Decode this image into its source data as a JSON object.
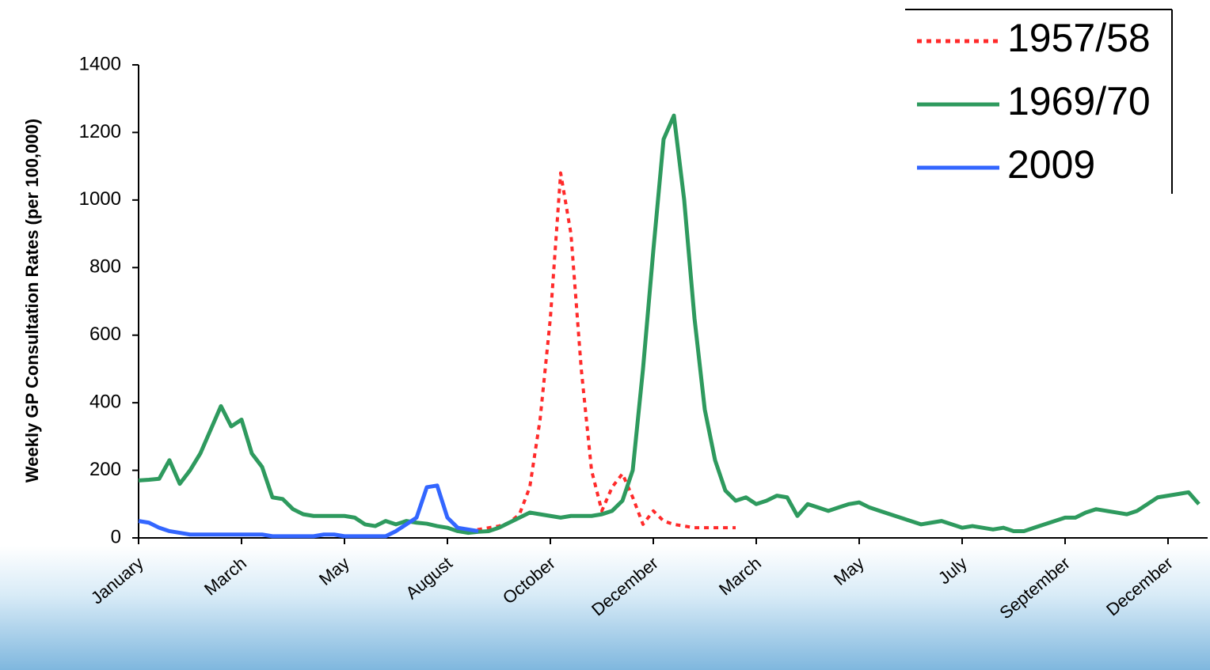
{
  "chart_data": {
    "type": "line",
    "y_label": "Weekly GP Consultation Rates (per 100,000)",
    "categories": [
      "January",
      null,
      null,
      null,
      null,
      null,
      null,
      null,
      null,
      null,
      "March",
      null,
      null,
      null,
      null,
      null,
      null,
      null,
      null,
      null,
      "May",
      null,
      null,
      null,
      null,
      null,
      null,
      null,
      null,
      null,
      "August",
      null,
      null,
      null,
      null,
      null,
      null,
      null,
      null,
      null,
      "October",
      null,
      null,
      null,
      null,
      null,
      null,
      null,
      null,
      null,
      "December",
      null,
      null,
      null,
      null,
      null,
      null,
      null,
      null,
      null,
      "March",
      null,
      null,
      null,
      null,
      null,
      null,
      null,
      null,
      null,
      "May",
      null,
      null,
      null,
      null,
      null,
      null,
      null,
      null,
      null,
      "July",
      null,
      null,
      null,
      null,
      null,
      null,
      null,
      null,
      null,
      "September",
      null,
      null,
      null,
      null,
      null,
      null,
      null,
      null,
      null,
      "December",
      null,
      null,
      null
    ],
    "series": [
      {
        "name": "1957/58",
        "color": "#ff2a2a",
        "style": "dotted",
        "values": [
          null,
          null,
          null,
          null,
          null,
          null,
          null,
          null,
          null,
          null,
          null,
          null,
          null,
          null,
          null,
          null,
          null,
          null,
          null,
          null,
          null,
          null,
          null,
          null,
          null,
          null,
          null,
          null,
          null,
          null,
          null,
          null,
          20,
          25,
          30,
          35,
          45,
          70,
          150,
          350,
          650,
          1080,
          900,
          500,
          200,
          80,
          150,
          190,
          120,
          40,
          80,
          50,
          40,
          35,
          30,
          30,
          30,
          30,
          30,
          null,
          null,
          null,
          null,
          null,
          null,
          null,
          null,
          null,
          null,
          null,
          null,
          null,
          null,
          null,
          null,
          null,
          null,
          null,
          null,
          null,
          null,
          null,
          null,
          null,
          null,
          null,
          null,
          null,
          null,
          null,
          null,
          null,
          null,
          null,
          null,
          null,
          null,
          null,
          null,
          null,
          null,
          null,
          null,
          null
        ]
      },
      {
        "name": "1969/70",
        "color": "#2e9a5e",
        "style": "solid",
        "values": [
          170,
          172,
          175,
          230,
          160,
          200,
          250,
          320,
          390,
          330,
          350,
          250,
          210,
          120,
          115,
          85,
          70,
          65,
          65,
          65,
          65,
          60,
          40,
          35,
          50,
          40,
          50,
          45,
          42,
          35,
          30,
          20,
          15,
          18,
          20,
          30,
          45,
          60,
          75,
          70,
          65,
          60,
          65,
          65,
          65,
          70,
          80,
          110,
          200,
          500,
          850,
          1180,
          1250,
          1000,
          650,
          380,
          230,
          140,
          110,
          120,
          100,
          110,
          125,
          120,
          65,
          100,
          90,
          80,
          90,
          100,
          105,
          90,
          80,
          70,
          60,
          50,
          40,
          45,
          50,
          40,
          30,
          35,
          30,
          25,
          30,
          20,
          20,
          30,
          40,
          50,
          60,
          60,
          75,
          85,
          80,
          75,
          70,
          80,
          100,
          120,
          125,
          130,
          135,
          100
        ]
      },
      {
        "name": "2009",
        "color": "#3366ff",
        "style": "solid",
        "values": [
          50,
          45,
          30,
          20,
          15,
          10,
          10,
          10,
          10,
          10,
          10,
          10,
          10,
          5,
          5,
          5,
          5,
          5,
          10,
          10,
          5,
          5,
          5,
          5,
          5,
          20,
          40,
          60,
          150,
          155,
          60,
          30,
          25,
          20,
          null,
          null,
          null,
          null,
          null,
          null,
          null,
          null,
          null,
          null,
          null,
          null,
          null,
          null,
          null,
          null,
          null,
          null,
          null,
          null,
          null,
          null,
          null,
          null,
          null,
          null,
          null,
          null,
          null,
          null,
          null,
          null,
          null,
          null,
          null,
          null,
          null,
          null,
          null,
          null,
          null,
          null,
          null,
          null,
          null,
          null,
          null,
          null,
          null,
          null,
          null,
          null,
          null,
          null,
          null,
          null,
          null,
          null,
          null,
          null,
          null,
          null,
          null,
          null,
          null,
          null,
          null,
          null,
          null,
          null
        ]
      }
    ],
    "ylim": [
      0,
      1400
    ],
    "yticks": [
      0,
      200,
      400,
      600,
      800,
      1000,
      1200,
      1400
    ],
    "grid": false,
    "legend": "top-right"
  }
}
